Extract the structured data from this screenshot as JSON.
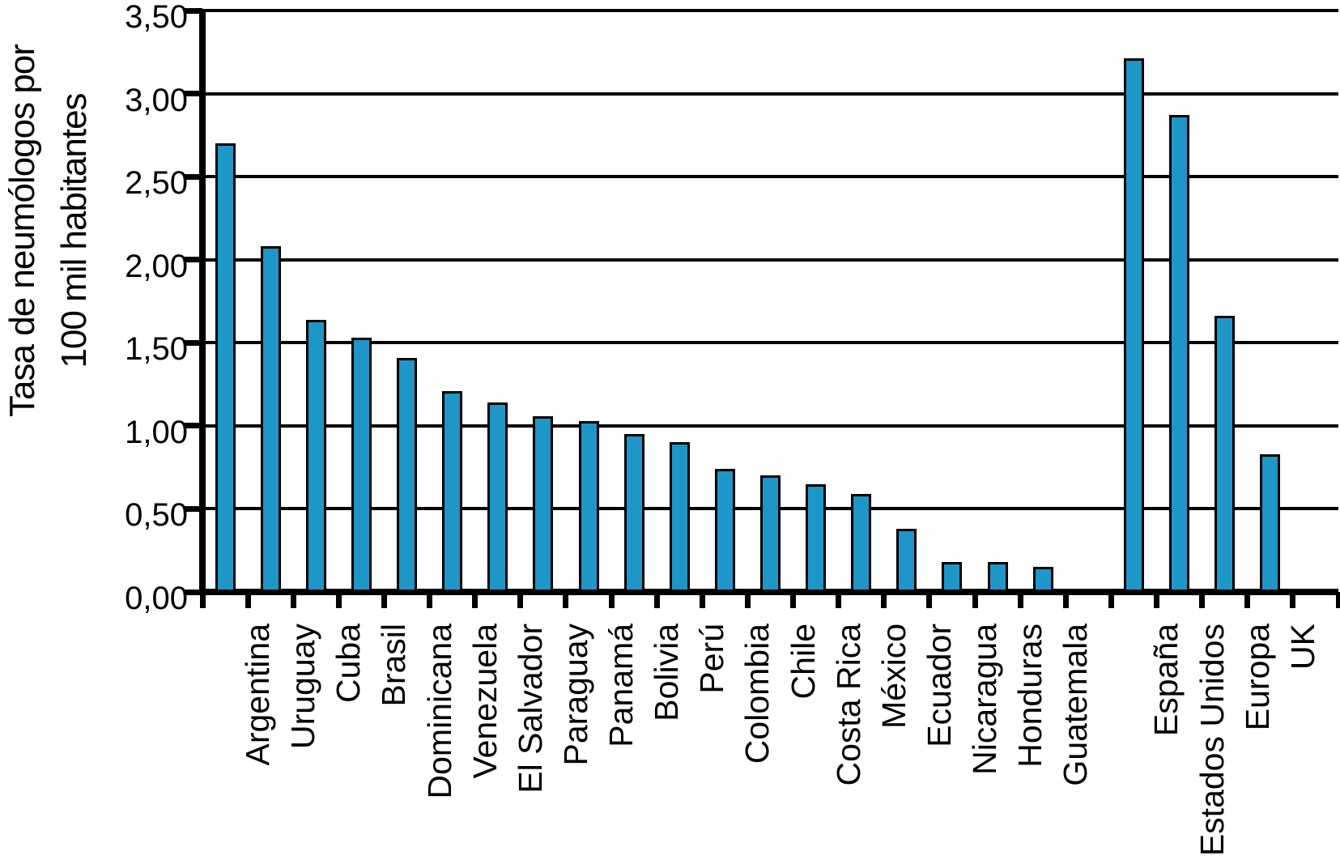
{
  "chart_data": {
    "type": "bar",
    "title": "",
    "ylabel_line1": "Tasa de neumólogos por",
    "ylabel_line2": "100 mil habitantes",
    "xlabel": "",
    "ylim": [
      0,
      3.5
    ],
    "grid": true,
    "legend": "none",
    "decimal_separator": ",",
    "bar_color": "#1E96C8",
    "bar_outline_color": "#000000",
    "axis_color": "#000000",
    "background_color": "#FFFFFF",
    "ytick_values": [
      0,
      0.5,
      1,
      1.5,
      2,
      2.5,
      3,
      3.5
    ],
    "ytick_labels": [
      "0,00",
      "0,50",
      "1,00",
      "1,50",
      "2,00",
      "2,50",
      "3,00",
      "3,50"
    ],
    "categories": [
      "Argentina",
      "Uruguay",
      "Cuba",
      "Brasil",
      "Dominicana",
      "Venezuela",
      "El Salvador",
      "Paraguay",
      "Panamá",
      "Bolivia",
      "Perú",
      "Colombia",
      "Chile",
      "Costa Rica",
      "México",
      "Ecuador",
      "Nicaragua",
      "Honduras",
      "Guatemala",
      "",
      "España",
      "Estados Unidos",
      "Europa",
      "UK",
      ""
    ],
    "values": [
      2.7,
      2.08,
      1.64,
      1.53,
      1.41,
      1.21,
      1.14,
      1.06,
      1.03,
      0.95,
      0.9,
      0.74,
      0.7,
      0.65,
      0.59,
      0.38,
      0.18,
      0.18,
      0.15,
      null,
      3.21,
      2.87,
      1.66,
      0.83,
      null
    ]
  }
}
